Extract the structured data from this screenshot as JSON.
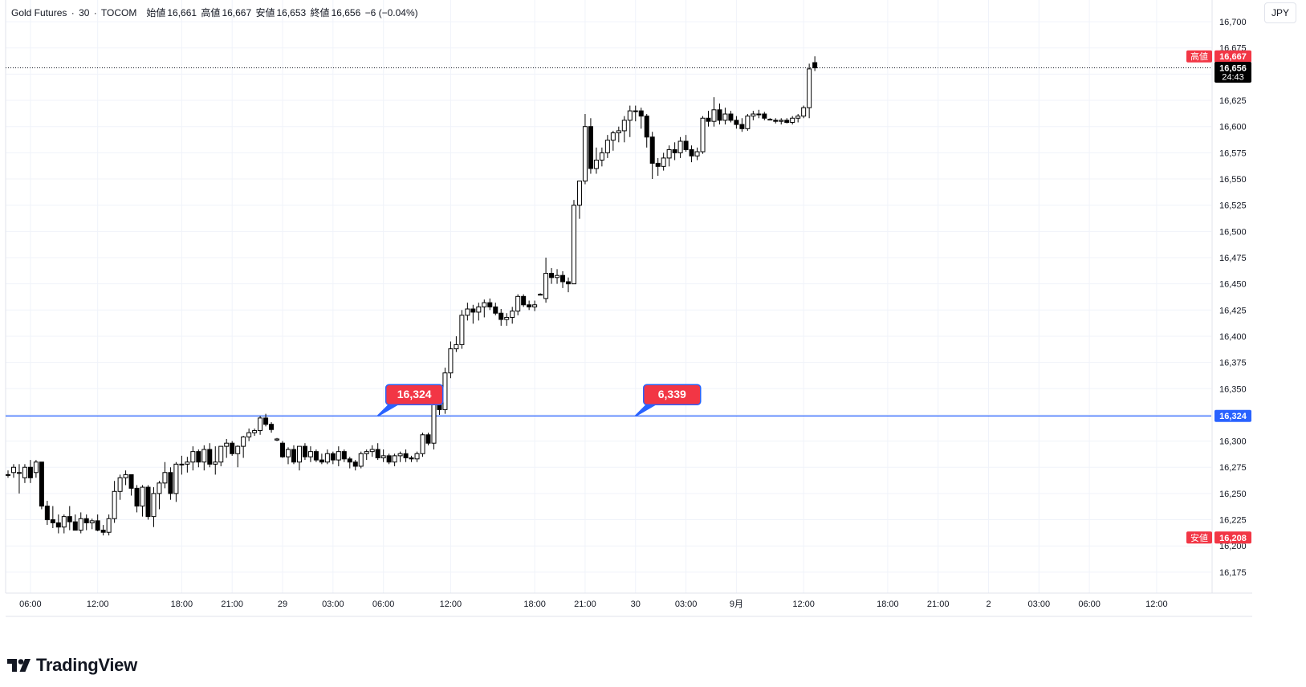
{
  "legend": {
    "symbol": "Gold Futures",
    "sep1": "·",
    "interval": "30",
    "sep2": "·",
    "exchange": "TOCOM",
    "open_label": "始値",
    "open": "16,661",
    "high_label": "高値",
    "high": "16,667",
    "low_label": "安値",
    "low": "16,653",
    "close_label": "終値",
    "close": "16,656",
    "change": "−6 (−0.04%)"
  },
  "currency": "JPY",
  "brand": {
    "name": "TradingView",
    "logo": "tradingview-logo-icon"
  },
  "colors": {
    "up_body": "#ffffff",
    "down_body": "#000000",
    "wick": "#000000",
    "grid": "#f0f3fa",
    "hline": "#2962ff",
    "badge_red": "#f23645",
    "last_price_bg": "#000000"
  },
  "price_tags": {
    "high_label": "高値",
    "high_value": "16,667",
    "last_value": "16,656",
    "countdown": "24:43",
    "line_value": "16,324",
    "low_label": "安値",
    "low_value": "16,208"
  },
  "callouts": [
    {
      "text": "16,324",
      "at_index": 66
    },
    {
      "text": "6,339",
      "at_index": 112
    }
  ],
  "chart_data": {
    "type": "candlestick",
    "title": "Gold Futures · 30 · TOCOM",
    "ylim": [
      16155,
      16697
    ],
    "y_ticks": [
      16175,
      16200,
      16225,
      16250,
      16275,
      16300,
      16325,
      16350,
      16375,
      16400,
      16425,
      16450,
      16475,
      16500,
      16525,
      16550,
      16575,
      16600,
      16625,
      16650,
      16675,
      16700
    ],
    "y_tick_labels": [
      "16,175",
      "16,200",
      "16,225",
      "16,250",
      "16,275",
      "16,300",
      "16,325",
      "16,350",
      "16,375",
      "16,400",
      "16,425",
      "16,450",
      "16,475",
      "16,500",
      "16,525",
      "16,550",
      "16,575",
      "16,600",
      "16,625",
      "16,650",
      "16,675",
      "16,700"
    ],
    "x_ticks": [
      {
        "i": 4,
        "label": "06:00"
      },
      {
        "i": 16,
        "label": "12:00"
      },
      {
        "i": 31,
        "label": "18:00"
      },
      {
        "i": 40,
        "label": "21:00"
      },
      {
        "i": 49,
        "label": "29"
      },
      {
        "i": 58,
        "label": "03:00"
      },
      {
        "i": 67,
        "label": "06:00"
      },
      {
        "i": 79,
        "label": "12:00"
      },
      {
        "i": 94,
        "label": "18:00"
      },
      {
        "i": 103,
        "label": "21:00"
      },
      {
        "i": 112,
        "label": "30"
      },
      {
        "i": 121,
        "label": "03:00"
      },
      {
        "i": 130,
        "label": "9月"
      },
      {
        "i": 142,
        "label": "12:00"
      },
      {
        "i": 157,
        "label": "18:00"
      },
      {
        "i": 166,
        "label": "21:00"
      },
      {
        "i": 175,
        "label": "2"
      },
      {
        "i": 184,
        "label": "03:00"
      },
      {
        "i": 193,
        "label": "06:00"
      },
      {
        "i": 205,
        "label": "12:00"
      }
    ],
    "hline_value": 16324,
    "last_value": 16656,
    "ohlc": [
      [
        16268,
        16272,
        16265,
        16268
      ],
      [
        16270,
        16278,
        16265,
        16275
      ],
      [
        16270,
        16278,
        16250,
        16270
      ],
      [
        16265,
        16278,
        16260,
        16275
      ],
      [
        16275,
        16282,
        16260,
        16265
      ],
      [
        16270,
        16282,
        16265,
        16280
      ],
      [
        16280,
        16280,
        16235,
        16238
      ],
      [
        16238,
        16243,
        16220,
        16225
      ],
      [
        16225,
        16238,
        16217,
        16222
      ],
      [
        16222,
        16230,
        16212,
        16218
      ],
      [
        16218,
        16230,
        16212,
        16228
      ],
      [
        16228,
        16238,
        16215,
        16223
      ],
      [
        16223,
        16230,
        16215,
        16215
      ],
      [
        16215,
        16232,
        16212,
        16226
      ],
      [
        16226,
        16230,
        16215,
        16222
      ],
      [
        16222,
        16226,
        16216,
        16224
      ],
      [
        16224,
        16230,
        16214,
        16215
      ],
      [
        16215,
        16220,
        16210,
        16213
      ],
      [
        16213,
        16230,
        16210,
        16226
      ],
      [
        16226,
        16262,
        16222,
        16252
      ],
      [
        16252,
        16268,
        16244,
        16265
      ],
      [
        16265,
        16272,
        16258,
        16268
      ],
      [
        16268,
        16268,
        16248,
        16255
      ],
      [
        16255,
        16258,
        16232,
        16238
      ],
      [
        16238,
        16258,
        16228,
        16256
      ],
      [
        16256,
        16258,
        16225,
        16228
      ],
      [
        16228,
        16256,
        16218,
        16250
      ],
      [
        16250,
        16262,
        16235,
        16260
      ],
      [
        16260,
        16280,
        16255,
        16270
      ],
      [
        16270,
        16275,
        16244,
        16250
      ],
      [
        16250,
        16280,
        16242,
        16278
      ],
      [
        16278,
        16286,
        16268,
        16278
      ],
      [
        16278,
        16285,
        16270,
        16280
      ],
      [
        16280,
        16295,
        16272,
        16290
      ],
      [
        16290,
        16292,
        16275,
        16280
      ],
      [
        16280,
        16296,
        16272,
        16292
      ],
      [
        16292,
        16298,
        16275,
        16278
      ],
      [
        16278,
        16295,
        16268,
        16280
      ],
      [
        16280,
        16295,
        16276,
        16295
      ],
      [
        16295,
        16302,
        16284,
        16298
      ],
      [
        16298,
        16300,
        16286,
        16288
      ],
      [
        16288,
        16296,
        16275,
        16295
      ],
      [
        16295,
        16305,
        16284,
        16304
      ],
      [
        16304,
        16312,
        16300,
        16308
      ],
      [
        16308,
        16312,
        16305,
        16310
      ],
      [
        16310,
        16324,
        16306,
        16322
      ],
      [
        16322,
        16326,
        16314,
        16316
      ],
      [
        16316,
        16318,
        16308,
        16311
      ],
      [
        16301,
        16303,
        16300,
        16302
      ],
      [
        16298,
        16300,
        16284,
        16285
      ],
      [
        16285,
        16294,
        16278,
        16292
      ],
      [
        16292,
        16296,
        16278,
        16280
      ],
      [
        16280,
        16295,
        16272,
        16295
      ],
      [
        16295,
        16298,
        16282,
        16285
      ],
      [
        16285,
        16295,
        16280,
        16290
      ],
      [
        16290,
        16292,
        16280,
        16282
      ],
      [
        16282,
        16288,
        16278,
        16280
      ],
      [
        16280,
        16292,
        16278,
        16288
      ],
      [
        16288,
        16290,
        16278,
        16282
      ],
      [
        16282,
        16295,
        16276,
        16290
      ],
      [
        16290,
        16292,
        16280,
        16283
      ],
      [
        16283,
        16285,
        16274,
        16280
      ],
      [
        16280,
        16282,
        16272,
        16276
      ],
      [
        16276,
        16290,
        16274,
        16288
      ],
      [
        16288,
        16292,
        16282,
        16290
      ],
      [
        16290,
        16296,
        16285,
        16292
      ],
      [
        16292,
        16298,
        16282,
        16284
      ],
      [
        16284,
        16292,
        16280,
        16286
      ],
      [
        16286,
        16288,
        16278,
        16280
      ],
      [
        16280,
        16288,
        16276,
        16286
      ],
      [
        16286,
        16290,
        16280,
        16288
      ],
      [
        16288,
        16292,
        16280,
        16284
      ],
      [
        16284,
        16286,
        16280,
        16283
      ],
      [
        16283,
        16290,
        16280,
        16288
      ],
      [
        16288,
        16308,
        16285,
        16306
      ],
      [
        16306,
        16308,
        16296,
        16298
      ],
      [
        16298,
        16340,
        16292,
        16335
      ],
      [
        16335,
        16338,
        16325,
        16330
      ],
      [
        16330,
        16370,
        16326,
        16365
      ],
      [
        16365,
        16395,
        16360,
        16388
      ],
      [
        16388,
        16400,
        16385,
        16392
      ],
      [
        16392,
        16425,
        16388,
        16420
      ],
      [
        16420,
        16432,
        16415,
        16426
      ],
      [
        16426,
        16430,
        16412,
        16423
      ],
      [
        16423,
        16432,
        16415,
        16428
      ],
      [
        16428,
        16435,
        16418,
        16432
      ],
      [
        16432,
        16436,
        16425,
        16428
      ],
      [
        16428,
        16432,
        16420,
        16422
      ],
      [
        16422,
        16426,
        16410,
        16416
      ],
      [
        16416,
        16422,
        16410,
        16418
      ],
      [
        16418,
        16428,
        16412,
        16424
      ],
      [
        16424,
        16440,
        16420,
        16438
      ],
      [
        16438,
        16440,
        16428,
        16430
      ],
      [
        16430,
        16434,
        16425,
        16428
      ],
      [
        16428,
        16434,
        16424,
        16430
      ],
      [
        16440,
        16441,
        16440,
        16440
      ],
      [
        16436,
        16475,
        16432,
        16460
      ],
      [
        16460,
        16465,
        16450,
        16456
      ],
      [
        16456,
        16464,
        16450,
        16458
      ],
      [
        16458,
        16462,
        16446,
        16452
      ],
      [
        16452,
        16456,
        16442,
        16450
      ],
      [
        16450,
        16530,
        16450,
        16525
      ],
      [
        16525,
        16545,
        16512,
        16548
      ],
      [
        16548,
        16612,
        16545,
        16600
      ],
      [
        16600,
        16608,
        16555,
        16560
      ],
      [
        16560,
        16580,
        16555,
        16568
      ],
      [
        16568,
        16580,
        16562,
        16575
      ],
      [
        16575,
        16592,
        16570,
        16587
      ],
      [
        16587,
        16596,
        16577,
        16594
      ],
      [
        16594,
        16600,
        16585,
        16596
      ],
      [
        16596,
        16610,
        16585,
        16606
      ],
      [
        16606,
        16620,
        16590,
        16615
      ],
      [
        16615,
        16620,
        16605,
        16615
      ],
      [
        16615,
        16618,
        16598,
        16610
      ],
      [
        16610,
        16612,
        16580,
        16590
      ],
      [
        16590,
        16595,
        16550,
        16565
      ],
      [
        16565,
        16570,
        16553,
        16562
      ],
      [
        16562,
        16575,
        16558,
        16570
      ],
      [
        16570,
        16582,
        16562,
        16578
      ],
      [
        16578,
        16585,
        16568,
        16575
      ],
      [
        16575,
        16590,
        16570,
        16586
      ],
      [
        16586,
        16592,
        16576,
        16578
      ],
      [
        16578,
        16582,
        16566,
        16572
      ],
      [
        16572,
        16580,
        16568,
        16576
      ],
      [
        16576,
        16610,
        16574,
        16608
      ],
      [
        16608,
        16615,
        16600,
        16605
      ],
      [
        16605,
        16628,
        16600,
        16616
      ],
      [
        16616,
        16622,
        16602,
        16606
      ],
      [
        16606,
        16618,
        16602,
        16612
      ],
      [
        16612,
        16615,
        16604,
        16606
      ],
      [
        16606,
        16610,
        16598,
        16602
      ],
      [
        16602,
        16608,
        16595,
        16598
      ],
      [
        16598,
        16612,
        16596,
        16610
      ],
      [
        16610,
        16615,
        16606,
        16612
      ],
      [
        16612,
        16616,
        16608,
        16612
      ],
      [
        16612,
        16614,
        16606,
        16608
      ],
      [
        16607,
        16608,
        16606,
        16607
      ],
      [
        16606,
        16608,
        16603,
        16605
      ],
      [
        16605,
        16608,
        16602,
        16606
      ],
      [
        16606,
        16608,
        16603,
        16604
      ],
      [
        16604,
        16610,
        16602,
        16608
      ],
      [
        16608,
        16612,
        16604,
        16610
      ],
      [
        16610,
        16620,
        16608,
        16618
      ],
      [
        16618,
        16660,
        16608,
        16655
      ],
      [
        16661,
        16667,
        16653,
        16656
      ]
    ]
  }
}
